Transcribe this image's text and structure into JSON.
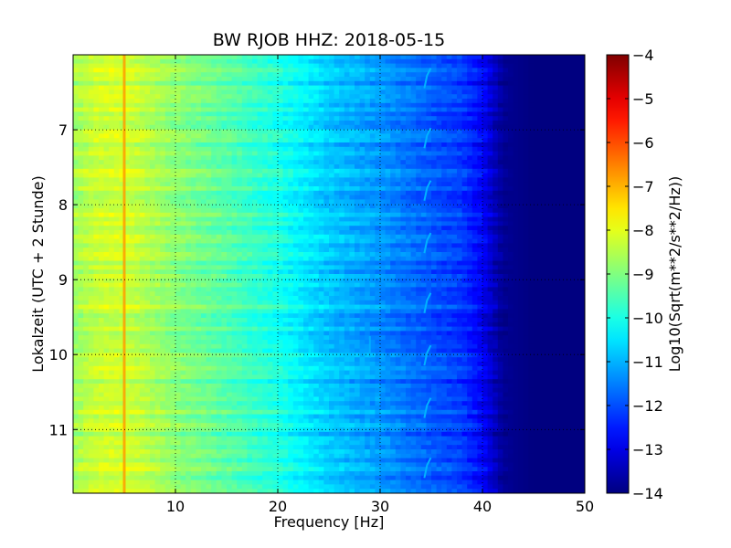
{
  "chart_data": {
    "type": "heatmap",
    "title": "BW RJOB HHZ: 2018-05-15",
    "xlabel": "Frequency [Hz]",
    "ylabel": "Lokalzeit (UTC + 2 Stunde)",
    "xlim": [
      0,
      50
    ],
    "ylim": [
      6.0,
      11.85
    ],
    "y_axis_inverted": true,
    "xticks": [
      10,
      20,
      30,
      40,
      50
    ],
    "yticks": [
      7,
      8,
      9,
      10,
      11
    ],
    "grid": true,
    "colormap": "jet",
    "colorbar": {
      "label": "Log10(Sqrt(m**2/s**2/Hz))",
      "range": [
        -14,
        -4
      ],
      "ticks": [
        -4,
        -5,
        -6,
        -7,
        -8,
        -9,
        -10,
        -11,
        -12,
        -13,
        -14
      ]
    },
    "spectral_profile": {
      "frequency_hz": [
        0,
        2,
        5,
        8,
        10,
        15,
        20,
        25,
        30,
        35,
        38,
        40,
        41,
        42,
        45,
        50
      ],
      "log10_amplitude": [
        -8.7,
        -8.3,
        -8.2,
        -8.6,
        -8.9,
        -9.4,
        -10.0,
        -10.8,
        -11.3,
        -11.9,
        -12.2,
        -12.8,
        -13.3,
        -13.8,
        -14.0,
        -14.0
      ]
    },
    "features": [
      {
        "name": "persistent line",
        "frequency_hz": 5.0,
        "log10_amplitude": -6.8
      },
      {
        "name": "intermittent line",
        "frequency_hz": 34.5,
        "log10_amplitude": -11.0
      },
      {
        "name": "faint line",
        "frequency_hz": 29.0,
        "log10_amplitude": -11.0
      }
    ]
  }
}
